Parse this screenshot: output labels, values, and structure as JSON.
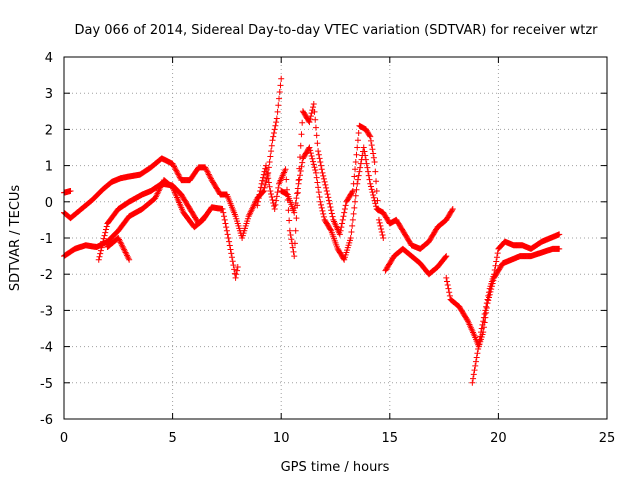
{
  "chart_data": {
    "type": "scatter",
    "title": "Day 066 of 2014, Sidereal Day-to-day VTEC variation (SDTVAR) for receiver wtzr",
    "xlabel": "GPS time / hours",
    "ylabel": "SDTVAR / TECUs",
    "xlim": [
      0,
      25
    ],
    "ylim": [
      -6,
      4
    ],
    "xticks": [
      0,
      5,
      10,
      15,
      20,
      25
    ],
    "yticks": [
      -6,
      -5,
      -4,
      -3,
      -2,
      -1,
      0,
      1,
      2,
      3,
      4
    ],
    "grid": true,
    "marker": "+",
    "color": "#ff0000",
    "series": [
      {
        "name": "trace-1",
        "points": [
          [
            0,
            0.25
          ],
          [
            0.3,
            0.3
          ]
        ]
      },
      {
        "name": "trace-2",
        "points": [
          [
            0,
            -0.3
          ],
          [
            0.3,
            -0.45
          ],
          [
            0.8,
            -0.2
          ],
          [
            1.3,
            0.05
          ],
          [
            1.8,
            0.35
          ],
          [
            2.2,
            0.55
          ],
          [
            2.6,
            0.65
          ],
          [
            3.0,
            0.7
          ],
          [
            3.5,
            0.75
          ],
          [
            4.0,
            0.95
          ],
          [
            4.5,
            1.2
          ],
          [
            5.0,
            1.05
          ],
          [
            5.4,
            0.6
          ],
          [
            5.8,
            0.6
          ],
          [
            6.2,
            0.95
          ],
          [
            6.5,
            0.95
          ],
          [
            6.8,
            0.6
          ],
          [
            7.2,
            0.2
          ],
          [
            7.5,
            0.2
          ],
          [
            7.9,
            -0.4
          ],
          [
            8.2,
            -1.0
          ],
          [
            8.5,
            -0.4
          ],
          [
            8.9,
            0.1
          ],
          [
            9.2,
            0.3
          ],
          [
            9.4,
            0.8
          ],
          [
            9.6,
            1.7
          ],
          [
            9.8,
            2.3
          ],
          [
            10.0,
            3.4
          ]
        ]
      },
      {
        "name": "trace-3",
        "points": [
          [
            0,
            -1.5
          ],
          [
            0.5,
            -1.3
          ],
          [
            1.0,
            -1.2
          ],
          [
            1.5,
            -1.25
          ],
          [
            2.0,
            -1.1
          ],
          [
            2.5,
            -0.8
          ],
          [
            3.0,
            -0.4
          ],
          [
            3.6,
            -0.2
          ],
          [
            4.2,
            0.1
          ],
          [
            4.6,
            0.6
          ],
          [
            5.0,
            0.4
          ],
          [
            5.5,
            -0.3
          ],
          [
            6.0,
            -0.7
          ],
          [
            6.4,
            -0.5
          ],
          [
            6.8,
            -0.15
          ],
          [
            7.3,
            -0.2
          ],
          [
            7.6,
            -1.1
          ],
          [
            7.8,
            -1.75
          ],
          [
            7.9,
            -2.1
          ],
          [
            8.0,
            -1.8
          ]
        ]
      },
      {
        "name": "trace-4",
        "points": [
          [
            1.6,
            -1.6
          ],
          [
            2.0,
            -0.6
          ],
          [
            2.5,
            -0.2
          ],
          [
            3.0,
            0.0
          ],
          [
            3.6,
            0.2
          ],
          [
            4.0,
            0.3
          ],
          [
            4.5,
            0.5
          ],
          [
            5.0,
            0.45
          ],
          [
            5.4,
            0.2
          ],
          [
            5.8,
            -0.2
          ],
          [
            6.2,
            -0.6
          ],
          [
            6.5,
            -0.4
          ]
        ]
      },
      {
        "name": "trace-5",
        "points": [
          [
            2.0,
            -1.25
          ],
          [
            2.5,
            -1.0
          ],
          [
            3.0,
            -1.6
          ]
        ]
      },
      {
        "name": "trace-6",
        "points": [
          [
            10.0,
            0.3
          ],
          [
            10.3,
            0.2
          ],
          [
            10.6,
            -0.3
          ],
          [
            10.8,
            0.5
          ],
          [
            11.0,
            1.2
          ],
          [
            11.3,
            1.5
          ],
          [
            11.6,
            0.8
          ],
          [
            11.8,
            0.0
          ],
          [
            12.0,
            -0.5
          ],
          [
            12.3,
            -0.8
          ],
          [
            12.6,
            -1.3
          ],
          [
            12.9,
            -1.6
          ],
          [
            13.2,
            -1.0
          ],
          [
            13.5,
            0.5
          ],
          [
            13.8,
            1.5
          ],
          [
            14.1,
            0.5
          ],
          [
            14.4,
            -0.2
          ],
          [
            14.7,
            -0.3
          ],
          [
            15.0,
            -0.6
          ],
          [
            15.3,
            -0.5
          ],
          [
            15.6,
            -0.8
          ],
          [
            16.0,
            -1.2
          ],
          [
            16.4,
            -1.3
          ],
          [
            16.8,
            -1.1
          ],
          [
            17.2,
            -0.7
          ],
          [
            17.6,
            -0.5
          ],
          [
            17.9,
            -0.2
          ]
        ]
      },
      {
        "name": "trace-7",
        "points": [
          [
            8.9,
            -0.1
          ],
          [
            9.1,
            0.5
          ],
          [
            9.3,
            1.0
          ],
          [
            9.5,
            0.3
          ],
          [
            9.7,
            -0.2
          ],
          [
            9.9,
            0.5
          ],
          [
            10.2,
            0.9
          ],
          [
            10.4,
            -0.8
          ],
          [
            10.6,
            -1.5
          ],
          [
            10.8,
            0.6
          ],
          [
            11.0,
            2.5
          ],
          [
            11.3,
            2.2
          ],
          [
            11.5,
            2.7
          ],
          [
            11.7,
            1.4
          ],
          [
            11.9,
            0.8
          ],
          [
            12.1,
            0.3
          ],
          [
            12.4,
            -0.5
          ],
          [
            12.7,
            -0.9
          ],
          [
            13.0,
            0.0
          ],
          [
            13.3,
            0.3
          ],
          [
            13.6,
            2.1
          ],
          [
            13.9,
            2.0
          ],
          [
            14.1,
            1.8
          ],
          [
            14.3,
            1.1
          ],
          [
            14.5,
            -0.5
          ],
          [
            14.7,
            -1.0
          ]
        ]
      },
      {
        "name": "trace-8",
        "points": [
          [
            14.8,
            -1.9
          ],
          [
            15.2,
            -1.5
          ],
          [
            15.6,
            -1.3
          ],
          [
            16.0,
            -1.5
          ],
          [
            16.4,
            -1.7
          ],
          [
            16.8,
            -2.0
          ],
          [
            17.2,
            -1.8
          ],
          [
            17.6,
            -1.5
          ]
        ]
      },
      {
        "name": "trace-9",
        "points": [
          [
            17.6,
            -2.1
          ],
          [
            17.8,
            -2.7
          ],
          [
            18.2,
            -2.9
          ],
          [
            18.6,
            -3.3
          ],
          [
            18.9,
            -3.7
          ],
          [
            19.1,
            -4.0
          ],
          [
            19.3,
            -3.6
          ],
          [
            19.5,
            -2.8
          ],
          [
            19.8,
            -2.1
          ],
          [
            20.2,
            -1.7
          ],
          [
            20.6,
            -1.6
          ],
          [
            21.0,
            -1.5
          ],
          [
            21.5,
            -1.5
          ],
          [
            22.0,
            -1.4
          ],
          [
            22.5,
            -1.3
          ],
          [
            22.8,
            -1.3
          ]
        ]
      },
      {
        "name": "trace-10",
        "points": [
          [
            18.8,
            -5.0
          ],
          [
            19.0,
            -4.3
          ],
          [
            19.2,
            -3.6
          ],
          [
            19.4,
            -3.0
          ],
          [
            19.6,
            -2.4
          ],
          [
            19.8,
            -2.0
          ],
          [
            20.0,
            -1.3
          ],
          [
            20.3,
            -1.1
          ],
          [
            20.7,
            -1.2
          ],
          [
            21.1,
            -1.2
          ],
          [
            21.5,
            -1.3
          ],
          [
            22.0,
            -1.1
          ],
          [
            22.4,
            -1.0
          ],
          [
            22.8,
            -0.9
          ]
        ]
      }
    ]
  }
}
